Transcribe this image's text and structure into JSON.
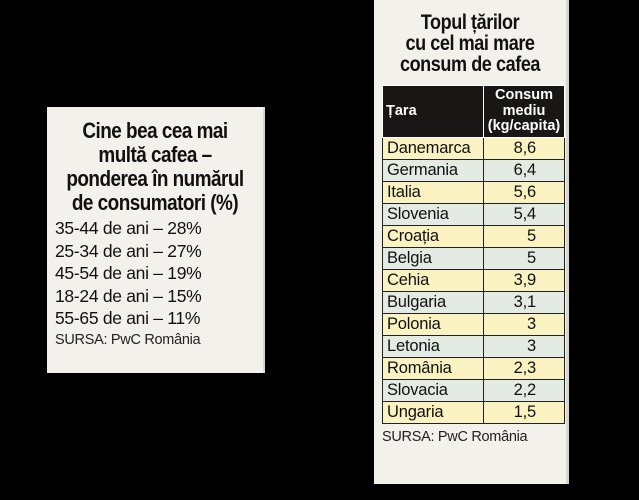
{
  "left_box": {
    "title_lines": [
      "Cine bea cea mai",
      "multă cafea –",
      "ponderea în numărul",
      "de consumatori (%)"
    ],
    "items": [
      {
        "age": "35-44",
        "label": "35-44 de ani – 28%",
        "value": 28
      },
      {
        "age": "25-34",
        "label": "25-34 de ani – 27%",
        "value": 27
      },
      {
        "age": "45-54",
        "label": "45-54 de ani – 19%",
        "value": 19
      },
      {
        "age": "18-24",
        "label": "18-24 de ani – 15%",
        "value": 15
      },
      {
        "age": "55-65",
        "label": "55-65 de ani – 11%",
        "value": 11
      }
    ],
    "source": "SURSA: PwC România"
  },
  "right_box": {
    "title_lines": [
      "Topul țărilor",
      "cu cel mai mare",
      "consum de cafea"
    ],
    "headers": {
      "country": "Țara",
      "consumption_lines": [
        "Consum",
        "mediu",
        "(kg/capita)"
      ]
    },
    "rows": [
      {
        "country": "Danemarca",
        "value": "8,6"
      },
      {
        "country": "Germania",
        "value": "6,4"
      },
      {
        "country": "Italia",
        "value": "5,6"
      },
      {
        "country": "Slovenia",
        "value": "5,4"
      },
      {
        "country": "Croația",
        "value": "5"
      },
      {
        "country": "Belgia",
        "value": "5"
      },
      {
        "country": "Cehia",
        "value": "3,9"
      },
      {
        "country": "Bulgaria",
        "value": "3,1"
      },
      {
        "country": "Polonia",
        "value": "3"
      },
      {
        "country": "Letonia",
        "value": "3"
      },
      {
        "country": "România",
        "value": "2,3"
      },
      {
        "country": "Slovacia",
        "value": "2,2"
      },
      {
        "country": "Ungaria",
        "value": "1,5"
      }
    ],
    "source": "SURSA: PwC România"
  },
  "colors": {
    "background": "#000000",
    "card": "#f2f1ec",
    "header": "#1a1616",
    "row_yellow": "#fbf2c2",
    "row_green": "#e3ebe4"
  }
}
